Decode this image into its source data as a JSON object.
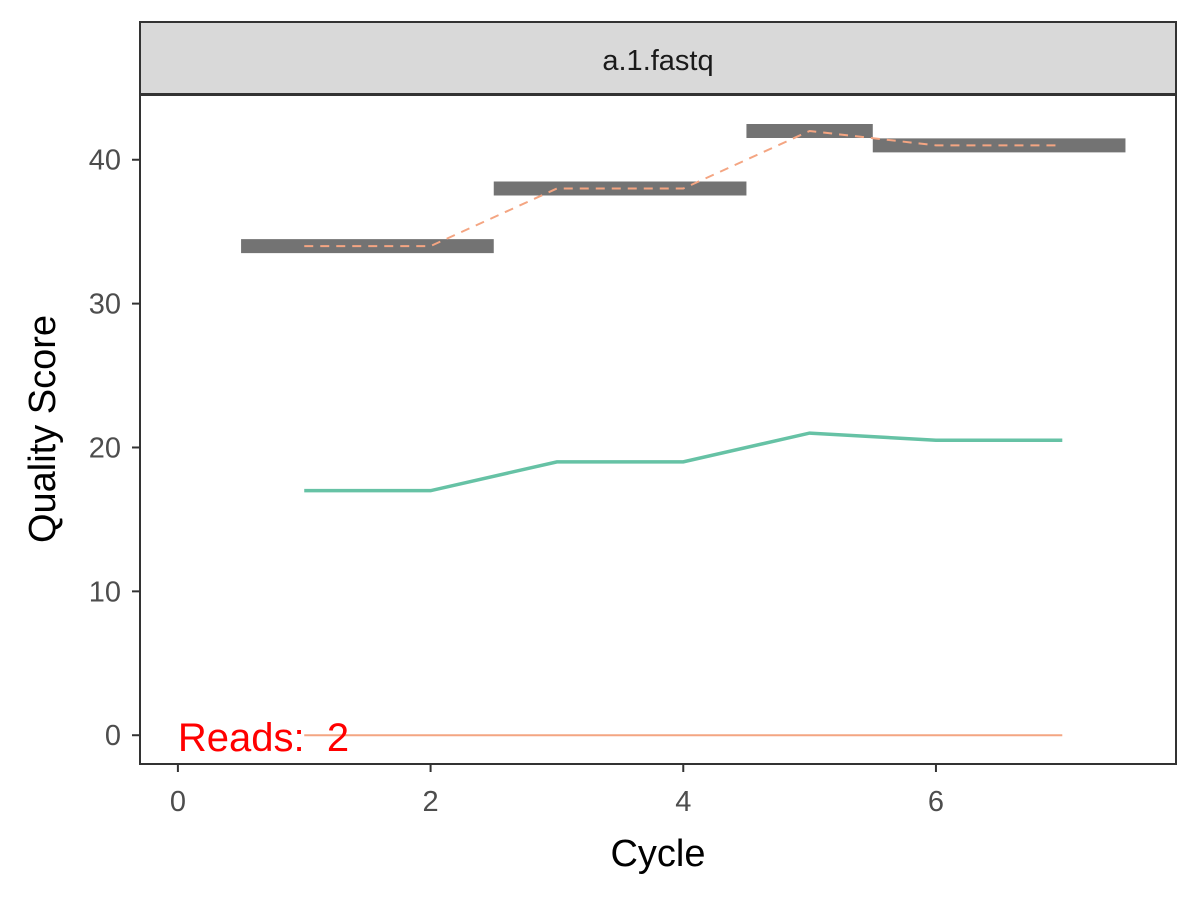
{
  "chart_data": {
    "type": "line",
    "facet_label": "a.1.fastq",
    "xlabel": "Cycle",
    "ylabel": "Quality Score",
    "xlim": [
      -0.3,
      7.9
    ],
    "ylim": [
      -2,
      44.5
    ],
    "x_ticks": [
      0,
      2,
      4,
      6
    ],
    "y_ticks": [
      0,
      10,
      20,
      30,
      40
    ],
    "grid": false,
    "annotation": "Reads:  2",
    "annotation_color": "#FF0000",
    "colors": {
      "mean_bar": "#737373",
      "mean_dashed": "#F4A582",
      "teal_line": "#66C2A5",
      "bottom_line": "#F4A582"
    },
    "series": [
      {
        "kind": "mean-bars",
        "segments": [
          {
            "x0": 0.5,
            "x1": 2.5,
            "y": 34
          },
          {
            "x0": 2.5,
            "x1": 4.5,
            "y": 38
          },
          {
            "x0": 4.5,
            "x1": 5.5,
            "y": 42
          },
          {
            "x0": 5.5,
            "x1": 7.5,
            "y": 41
          }
        ]
      },
      {
        "kind": "dashed-line",
        "x": [
          1,
          2,
          3,
          4,
          5,
          6,
          7
        ],
        "y": [
          34,
          34,
          38,
          38,
          42,
          41,
          41
        ]
      },
      {
        "kind": "solid-line",
        "x": [
          1,
          2,
          3,
          4,
          5,
          6,
          7
        ],
        "y": [
          17,
          17,
          19,
          19,
          21,
          20.5,
          20.5
        ]
      },
      {
        "kind": "bottom-line",
        "x": [
          1,
          2,
          3,
          4,
          5,
          6,
          7
        ],
        "y": [
          0,
          0,
          0,
          0,
          0,
          0,
          0
        ]
      }
    ]
  }
}
